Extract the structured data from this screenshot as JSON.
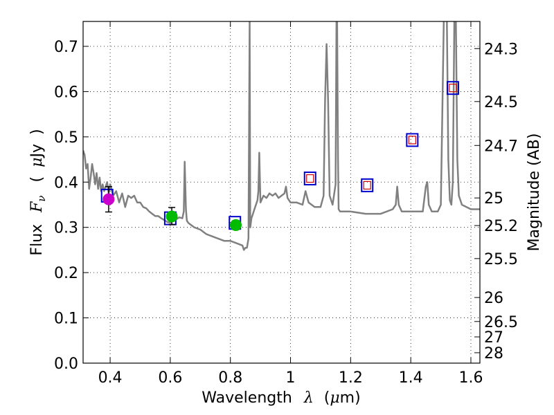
{
  "chart_data": {
    "type": "line",
    "xlabel_parts": [
      "Wavelength",
      "λ",
      "(",
      "μ",
      "m)"
    ],
    "ylabel_parts": [
      "Flux",
      "F",
      "ν",
      "(",
      "μ",
      "Jy",
      ")"
    ],
    "y2label": "Magnitude (AB)",
    "xlim": [
      0.31,
      1.63
    ],
    "ylim": [
      0.0,
      0.755
    ],
    "grid": true,
    "x_ticks": [
      0.4,
      0.6,
      0.8,
      1.0,
      1.2,
      1.4,
      1.6
    ],
    "x_tick_labels": [
      "0.4",
      "0.6",
      "0.8",
      "1",
      "1.2",
      "1.4",
      "1.6"
    ],
    "y_ticks": [
      0.0,
      0.1,
      0.2,
      0.3,
      0.4,
      0.5,
      0.6,
      0.7
    ],
    "y_tick_labels": [
      "0.0",
      "0.1",
      "0.2",
      "0.3",
      "0.4",
      "0.5",
      "0.6",
      "0.7"
    ],
    "y2_ticks": [
      {
        "label": "24.3",
        "flux": 0.695
      },
      {
        "label": "24.5",
        "flux": 0.578
      },
      {
        "label": "24.7",
        "flux": 0.481
      },
      {
        "label": "25",
        "flux": 0.365
      },
      {
        "label": "25.2",
        "flux": 0.304
      },
      {
        "label": "25.5",
        "flux": 0.231
      },
      {
        "label": "26",
        "flux": 0.145
      },
      {
        "label": "26.5",
        "flux": 0.092
      },
      {
        "label": "27",
        "flux": 0.058
      },
      {
        "label": "28",
        "flux": 0.023
      }
    ],
    "colors": {
      "spectrum": "#808080",
      "model_box": "#0000cc",
      "model_inner": "#cc0000",
      "magenta_point": "#cc00cc",
      "green_point": "#00bb00",
      "errorbar": "#000000"
    },
    "series": [
      {
        "name": "model spectrum",
        "x": [
          0.31,
          0.315,
          0.32,
          0.325,
          0.33,
          0.335,
          0.34,
          0.345,
          0.35,
          0.355,
          0.36,
          0.365,
          0.37,
          0.375,
          0.38,
          0.385,
          0.39,
          0.395,
          0.4,
          0.41,
          0.42,
          0.43,
          0.44,
          0.45,
          0.46,
          0.47,
          0.48,
          0.49,
          0.5,
          0.51,
          0.52,
          0.53,
          0.54,
          0.55,
          0.56,
          0.57,
          0.58,
          0.59,
          0.6,
          0.61,
          0.62,
          0.63,
          0.64,
          0.645,
          0.648,
          0.652,
          0.655,
          0.66,
          0.68,
          0.7,
          0.72,
          0.74,
          0.76,
          0.78,
          0.8,
          0.82,
          0.84,
          0.845,
          0.85,
          0.855,
          0.86,
          0.862,
          0.864,
          0.866,
          0.87,
          0.875,
          0.88,
          0.885,
          0.89,
          0.893,
          0.896,
          0.9,
          0.91,
          0.92,
          0.93,
          0.94,
          0.95,
          0.96,
          0.97,
          0.98,
          0.985,
          0.99,
          1.0,
          1.02,
          1.04,
          1.05,
          1.06,
          1.08,
          1.1,
          1.11,
          1.115,
          1.12,
          1.125,
          1.13,
          1.14,
          1.15,
          1.153,
          1.155,
          1.158,
          1.16,
          1.165,
          1.2,
          1.25,
          1.3,
          1.34,
          1.35,
          1.355,
          1.36,
          1.37,
          1.4,
          1.44,
          1.45,
          1.455,
          1.46,
          1.47,
          1.49,
          1.5,
          1.51,
          1.52,
          1.525,
          1.53,
          1.535,
          1.54,
          1.545,
          1.55,
          1.555,
          1.56,
          1.57,
          1.6,
          1.63
        ],
        "y": [
          0.47,
          0.46,
          0.43,
          0.44,
          0.385,
          0.41,
          0.44,
          0.42,
          0.395,
          0.42,
          0.385,
          0.41,
          0.38,
          0.395,
          0.38,
          0.39,
          0.4,
          0.375,
          0.395,
          0.37,
          0.38,
          0.355,
          0.375,
          0.345,
          0.37,
          0.365,
          0.37,
          0.355,
          0.355,
          0.345,
          0.342,
          0.335,
          0.33,
          0.325,
          0.325,
          0.32,
          0.316,
          0.312,
          0.31,
          0.315,
          0.318,
          0.322,
          0.32,
          0.335,
          0.445,
          0.34,
          0.315,
          0.31,
          0.3,
          0.295,
          0.285,
          0.28,
          0.275,
          0.27,
          0.27,
          0.265,
          0.26,
          0.25,
          0.255,
          0.255,
          0.275,
          0.5,
          0.76,
          0.3,
          0.32,
          0.33,
          0.34,
          0.35,
          0.36,
          0.38,
          0.465,
          0.355,
          0.37,
          0.365,
          0.375,
          0.37,
          0.375,
          0.365,
          0.37,
          0.375,
          0.39,
          0.365,
          0.355,
          0.355,
          0.35,
          0.38,
          0.355,
          0.345,
          0.345,
          0.37,
          0.58,
          0.705,
          0.58,
          0.37,
          0.35,
          0.395,
          0.76,
          0.76,
          0.45,
          0.34,
          0.335,
          0.335,
          0.33,
          0.33,
          0.34,
          0.35,
          0.39,
          0.35,
          0.335,
          0.335,
          0.335,
          0.39,
          0.4,
          0.35,
          0.335,
          0.335,
          0.35,
          0.76,
          0.76,
          0.45,
          0.36,
          0.35,
          0.4,
          0.76,
          0.76,
          0.45,
          0.37,
          0.35,
          0.34,
          0.34
        ]
      }
    ],
    "model_boxes": [
      {
        "x": 0.39,
        "y": 0.37,
        "inner": false
      },
      {
        "x": 0.6,
        "y": 0.32,
        "inner": false
      },
      {
        "x": 0.815,
        "y": 0.31,
        "inner": false
      },
      {
        "x": 1.065,
        "y": 0.408,
        "inner": true
      },
      {
        "x": 1.255,
        "y": 0.393,
        "inner": true
      },
      {
        "x": 1.405,
        "y": 0.493,
        "inner": true
      },
      {
        "x": 1.54,
        "y": 0.608,
        "inner": true
      }
    ],
    "observed_points": [
      {
        "x": 0.395,
        "y": 0.362,
        "yerr_low": 0.028,
        "yerr_high": 0.028,
        "color": "magenta"
      },
      {
        "x": 0.605,
        "y": 0.324,
        "yerr_low": 0.018,
        "yerr_high": 0.02,
        "color": "green"
      },
      {
        "x": 0.818,
        "y": 0.305,
        "yerr_low": 0.01,
        "yerr_high": 0.01,
        "color": "green"
      }
    ]
  }
}
